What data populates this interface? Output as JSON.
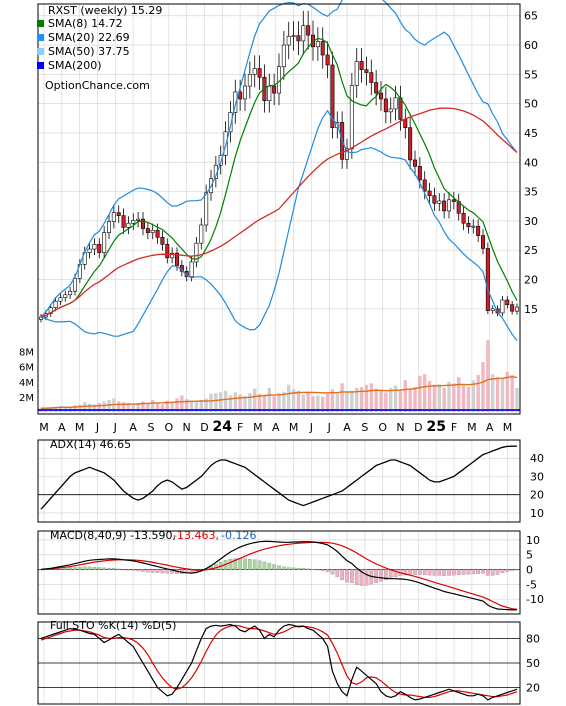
{
  "chart_data": [
    {
      "type": "line",
      "title": "RXST (weekly) 15.29",
      "watermark": "OptionChance.com",
      "legend_position": "top-left",
      "legend": [
        {
          "label": "RXST (weekly) 15.29",
          "color": "#000000"
        },
        {
          "label": "SMA(8) 14.72",
          "color": "#008000"
        },
        {
          "label": "SMA(20) 22.69",
          "color": "#1e90ff"
        },
        {
          "label": "SMA(50) 37.75",
          "color": "#87cefa"
        },
        {
          "label": "SMA(200)",
          "color": "#0000ff"
        }
      ],
      "x_tick_labels": [
        "M",
        "A",
        "M",
        "J",
        "J",
        "A",
        "S",
        "O",
        "N",
        "D",
        "24",
        "F",
        "M",
        "A",
        "M",
        "J",
        "J",
        "A",
        "S",
        "O",
        "N",
        "D",
        "25",
        "F",
        "M",
        "A",
        "M"
      ],
      "y_ticks": [
        15,
        20,
        25,
        30,
        35,
        40,
        45,
        50,
        55,
        60,
        65
      ],
      "ylim": [
        9,
        67
      ],
      "volume_ticks": [
        "2M",
        "4M",
        "6M",
        "8M"
      ],
      "volume_max": 9,
      "close": [
        13.6,
        14.2,
        15.2,
        16.3,
        16.9,
        17.4,
        18.0,
        20.2,
        22.6,
        24.6,
        25.2,
        26.0,
        24.6,
        28.0,
        29.9,
        31.4,
        30.9,
        28.9,
        29.6,
        30.1,
        30.3,
        28.7,
        28.0,
        28.4,
        27.2,
        26.0,
        23.7,
        24.5,
        22.4,
        21.4,
        20.5,
        23.0,
        26.2,
        29.3,
        34.8,
        37.2,
        39.5,
        41.2,
        45.2,
        48.5,
        52.0,
        50.8,
        53.0,
        55.0,
        56.0,
        54.5,
        50.5,
        53.0,
        51.8,
        56.3,
        60.0,
        61.5,
        61.6,
        60.7,
        63.3,
        61.7,
        59.7,
        60.6,
        58.3,
        56.6,
        45.9,
        46.8,
        40.5,
        42.3,
        53.1,
        57.2,
        55.8,
        55.3,
        53.6,
        51.8,
        50.8,
        48.6,
        49.1,
        51.0,
        47.3,
        45.9,
        40.4,
        39.3,
        37.0,
        35.1,
        34.3,
        33.0,
        33.4,
        31.7,
        33.6,
        33.3,
        31.3,
        29.6,
        29.0,
        29.1,
        27.5,
        25.3,
        14.7,
        15.0,
        14.3,
        16.5,
        15.7,
        14.6,
        15.3
      ],
      "volume_millions": [
        0.5,
        0.5,
        0.6,
        0.7,
        0.8,
        0.7,
        0.6,
        0.9,
        1.0,
        1.3,
        1.1,
        1.0,
        1.2,
        1.4,
        1.6,
        1.8,
        1.4,
        1.3,
        1.2,
        1.0,
        1.2,
        1.4,
        1.1,
        1.6,
        1.2,
        1.0,
        1.5,
        1.3,
        1.8,
        2.2,
        1.7,
        1.5,
        1.4,
        1.6,
        1.8,
        2.4,
        2.5,
        2.6,
        2.8,
        2.2,
        2.6,
        2.3,
        2.1,
        2.5,
        3.1,
        2.4,
        2.3,
        3.2,
        2.1,
        2.5,
        2.7,
        3.6,
        3.0,
        2.8,
        2.3,
        2.6,
        2.1,
        2.2,
        2.0,
        2.4,
        3.0,
        2.5,
        3.8,
        2.6,
        2.8,
        3.2,
        3.3,
        3.6,
        3.8,
        3.1,
        2.8,
        2.6,
        3.2,
        3.5,
        3.0,
        4.2,
        3.0,
        3.3,
        4.8,
        5.0,
        4.1,
        3.6,
        3.7,
        3.2,
        4.0,
        3.8,
        4.6,
        3.5,
        3.3,
        4.2,
        4.9,
        6.6,
        9.5,
        5.0,
        4.6,
        4.5,
        5.3,
        4.9,
        3.2
      ],
      "indicators_shown": [
        "SMA(8)",
        "SMA(20)",
        "Bollinger upper",
        "Bollinger lower",
        "SMA(50)",
        "volume SMA"
      ]
    },
    {
      "type": "line",
      "legend": [
        {
          "label": "ADX(14) 46.65",
          "color": "#000000"
        }
      ],
      "y_ticks": [
        10,
        20,
        30,
        40
      ],
      "ylim": [
        5,
        50
      ],
      "series": [
        {
          "name": "ADX(14) 46.65",
          "values": [
            12,
            15,
            18,
            21,
            24,
            27,
            30,
            32,
            33,
            34,
            35,
            34,
            33,
            32,
            30,
            28,
            25,
            22,
            20,
            18,
            17,
            18,
            20,
            22,
            25,
            27,
            28,
            27,
            25,
            23,
            24,
            26,
            28,
            30,
            33,
            36,
            38,
            39,
            39,
            38,
            37,
            36,
            35,
            33,
            31,
            29,
            27,
            25,
            23,
            21,
            19,
            17,
            16,
            15,
            14,
            15,
            16,
            17,
            18,
            19,
            20,
            21,
            22,
            24,
            26,
            28,
            30,
            32,
            34,
            36,
            37,
            38,
            39,
            39,
            38,
            37,
            36,
            34,
            32,
            30,
            28,
            27,
            27,
            28,
            29,
            30,
            32,
            34,
            36,
            38,
            40,
            42,
            43,
            44,
            45,
            46,
            46.5,
            46.6,
            46.65
          ]
        }
      ]
    },
    {
      "type": "bar",
      "legend": [
        {
          "label": "MACD(8,40,9) -13.590,",
          "color": "#000000"
        },
        {
          "label": "-13.463,",
          "color": "#dc0000"
        },
        {
          "label": "-0.126",
          "color": "#1f5fbf"
        }
      ],
      "y_ticks": [
        -10,
        -5,
        0,
        5,
        10
      ],
      "ylim": [
        -15,
        13
      ],
      "series": [
        {
          "name": "MACD(8,40,9) -13.590,",
          "values": [
            0.0,
            0.2,
            0.4,
            0.7,
            1.0,
            1.3,
            1.6,
            2.0,
            2.4,
            2.8,
            3.1,
            3.3,
            3.4,
            3.5,
            3.6,
            3.6,
            3.5,
            3.3,
            3.1,
            2.9,
            2.6,
            2.2,
            1.8,
            1.4,
            1.0,
            0.6,
            0.2,
            -0.2,
            -0.6,
            -0.9,
            -1.1,
            -1.2,
            -1.0,
            -0.5,
            0.3,
            1.3,
            2.4,
            3.6,
            4.8,
            5.9,
            6.8,
            7.6,
            8.2,
            8.7,
            9.1,
            9.4,
            9.5,
            9.5,
            9.4,
            9.3,
            9.2,
            9.2,
            9.3,
            9.3,
            9.4,
            9.4,
            9.3,
            9.1,
            8.8,
            8.3,
            7.3,
            6.1,
            4.5,
            3.0,
            2.0,
            0.5,
            -0.8,
            -1.7,
            -2.3,
            -2.6,
            -2.8,
            -3.0,
            -3.1,
            -3.1,
            -3.2,
            -3.3,
            -3.6,
            -4.0,
            -4.5,
            -5.1,
            -5.7,
            -6.3,
            -6.8,
            -7.4,
            -7.8,
            -8.2,
            -8.6,
            -9.0,
            -9.4,
            -9.8,
            -10.2,
            -10.6,
            -12.0,
            -12.8,
            -13.3,
            -13.4,
            -13.5,
            -13.6,
            -13.59
          ]
        },
        {
          "name": "-13.463,",
          "values": [
            0.0,
            0.1,
            0.2,
            0.4,
            0.6,
            0.8,
            1.0,
            1.3,
            1.6,
            1.9,
            2.2,
            2.5,
            2.7,
            2.9,
            3.1,
            3.2,
            3.3,
            3.3,
            3.3,
            3.2,
            3.1,
            2.9,
            2.7,
            2.4,
            2.1,
            1.8,
            1.5,
            1.1,
            0.8,
            0.5,
            0.2,
            0.0,
            -0.2,
            -0.2,
            -0.1,
            0.2,
            0.6,
            1.1,
            1.7,
            2.4,
            3.1,
            3.8,
            4.5,
            5.2,
            5.8,
            6.4,
            6.9,
            7.3,
            7.7,
            8.0,
            8.3,
            8.5,
            8.7,
            8.9,
            9.0,
            9.1,
            9.2,
            9.2,
            9.2,
            9.1,
            8.9,
            8.5,
            8.0,
            7.3,
            6.5,
            5.6,
            4.6,
            3.6,
            2.7,
            1.9,
            1.2,
            0.5,
            -0.1,
            -0.6,
            -1.1,
            -1.5,
            -1.9,
            -2.3,
            -2.8,
            -3.3,
            -3.8,
            -4.3,
            -4.8,
            -5.3,
            -5.8,
            -6.3,
            -6.8,
            -7.3,
            -7.8,
            -8.3,
            -8.8,
            -9.3,
            -10.0,
            -10.8,
            -11.6,
            -12.3,
            -12.8,
            -13.2,
            -13.463
          ]
        },
        {
          "name": "-0.126",
          "values": [
            0.0,
            0.1,
            0.2,
            0.3,
            0.4,
            0.5,
            0.6,
            0.7,
            0.8,
            0.9,
            0.9,
            0.8,
            0.7,
            0.6,
            0.5,
            0.4,
            0.2,
            0.0,
            -0.2,
            -0.3,
            -0.5,
            -0.7,
            -0.9,
            -1.0,
            -1.1,
            -1.2,
            -1.3,
            -1.3,
            -1.4,
            -1.4,
            -1.3,
            -1.2,
            -0.8,
            -0.3,
            0.4,
            1.1,
            1.8,
            2.5,
            3.1,
            3.5,
            3.7,
            3.8,
            3.7,
            3.5,
            3.3,
            3.0,
            2.6,
            2.2,
            1.7,
            1.3,
            0.9,
            0.7,
            0.6,
            0.4,
            0.4,
            0.3,
            0.1,
            -0.1,
            -0.4,
            -0.8,
            -1.6,
            -2.4,
            -3.5,
            -4.3,
            -4.5,
            -5.1,
            -5.4,
            -5.3,
            -5.0,
            -4.5,
            -4.0,
            -3.5,
            -3.0,
            -2.5,
            -2.1,
            -1.8,
            -1.7,
            -1.7,
            -1.7,
            -1.8,
            -1.9,
            -2.0,
            -2.0,
            -2.1,
            -2.0,
            -1.9,
            -1.8,
            -1.7,
            -1.6,
            -1.5,
            -1.4,
            -1.3,
            -2.0,
            -2.0,
            -1.7,
            -1.1,
            -0.7,
            -0.4,
            -0.126
          ]
        }
      ]
    },
    {
      "type": "line",
      "legend": [
        {
          "label": "Full STO %K(14) %D(5)",
          "color": "#000000"
        },
        {
          "label": "%D(5)",
          "color": "#dc0000"
        }
      ],
      "y_ticks": [
        20,
        50,
        80
      ],
      "ylim": [
        0,
        100
      ],
      "series": [
        {
          "name": "Full STO %K(14) %D(5)",
          "values": [
            80,
            82,
            84,
            86,
            88,
            90,
            92,
            91,
            90,
            88,
            86,
            85,
            80,
            75,
            78,
            82,
            85,
            80,
            75,
            70,
            60,
            50,
            40,
            30,
            20,
            15,
            10,
            12,
            20,
            30,
            40,
            50,
            65,
            80,
            92,
            95,
            96,
            95,
            96,
            97,
            95,
            90,
            88,
            92,
            95,
            90,
            80,
            85,
            82,
            90,
            95,
            97,
            96,
            94,
            95,
            92,
            90,
            85,
            80,
            70,
            40,
            25,
            15,
            10,
            30,
            45,
            40,
            35,
            30,
            25,
            15,
            10,
            8,
            10,
            15,
            12,
            8,
            5,
            6,
            8,
            10,
            12,
            14,
            16,
            18,
            16,
            14,
            12,
            10,
            10,
            12,
            10,
            5,
            8,
            10,
            12,
            14,
            16,
            18
          ]
        },
        {
          "name": "%D(5)",
          "values": [
            78,
            80,
            82,
            84,
            86,
            88,
            89,
            90,
            90,
            89,
            88,
            86,
            84,
            81,
            80,
            80,
            81,
            81,
            80,
            78,
            74,
            68,
            60,
            50,
            40,
            32,
            25,
            20,
            18,
            20,
            25,
            32,
            41,
            52,
            64,
            75,
            84,
            90,
            93,
            95,
            96,
            95,
            93,
            92,
            92,
            91,
            89,
            87,
            85,
            86,
            88,
            91,
            94,
            95,
            95,
            94,
            93,
            91,
            88,
            84,
            74,
            62,
            48,
            34,
            26,
            24,
            27,
            32,
            33,
            32,
            28,
            23,
            18,
            14,
            12,
            11,
            11,
            10,
            9,
            8,
            8,
            9,
            11,
            13,
            15,
            16,
            16,
            15,
            14,
            13,
            12,
            11,
            10,
            9,
            9,
            10,
            11,
            13,
            15
          ]
        }
      ]
    }
  ]
}
